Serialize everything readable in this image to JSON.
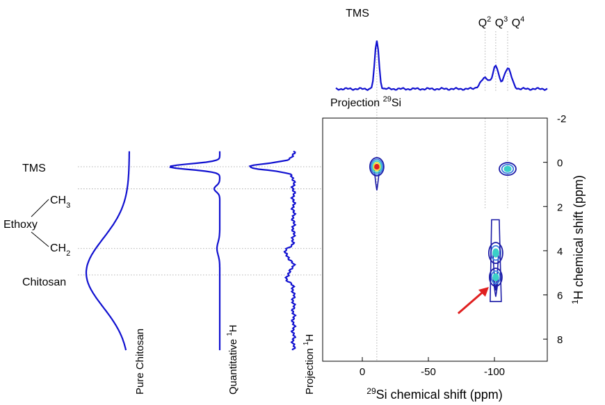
{
  "chart_data": {
    "type": "contour",
    "x_axis": {
      "label": "chemical shift (ppm)",
      "label_nucleus": "29",
      "label_element": "Si",
      "range": [
        30,
        -140
      ],
      "ticks": [
        0,
        -50,
        -100
      ],
      "tick_labels": [
        "0",
        "-50",
        "-100"
      ]
    },
    "y_axis": {
      "label": "H chemical shift (ppm)",
      "label_nucleus": "1",
      "range": [
        -2,
        9
      ],
      "ticks": [
        -2,
        0,
        2,
        4,
        6,
        8
      ],
      "tick_labels": [
        "-2",
        "0",
        "2",
        "4",
        "6",
        "8"
      ]
    },
    "top_projection": {
      "label_text": "Projection ",
      "label_nucleus": "29",
      "label_element": "Si",
      "peaks": [
        {
          "label": "TMS",
          "shift": -11,
          "height": 1.0,
          "width": 2.2
        },
        {
          "label": "Q2",
          "label_base": "Q",
          "label_sup": "2",
          "shift": -93,
          "height": 0.22,
          "width": 5
        },
        {
          "label": "Q3",
          "label_base": "Q",
          "label_sup": "3",
          "shift": -101,
          "height": 0.45,
          "width": 3
        },
        {
          "label": "Q4",
          "label_base": "Q",
          "label_sup": "4",
          "shift": -110,
          "height": 0.42,
          "width": 4
        }
      ]
    },
    "left_panels": [
      {
        "name": "Pure Chitosan",
        "label_text": "Pure Chitosan",
        "label_sup": ""
      },
      {
        "name": "Quantitative 1H",
        "label_text": "Quantitative ",
        "label_sup": "1",
        "label_end": "H"
      },
      {
        "name": "Projection 1H",
        "label_text": "Projection ",
        "label_sup": "1",
        "label_end": "H"
      }
    ],
    "shift_annotations": [
      {
        "label": "TMS",
        "shift": 0.2
      },
      {
        "label": "CH3",
        "label_base": "CH",
        "label_sub": "3",
        "shift": 1.2
      },
      {
        "label": "CH2",
        "label_base": "CH",
        "label_sub": "2",
        "shift": 3.9
      },
      {
        "label": "Chitosan",
        "shift": 5.1
      }
    ],
    "group_label": "Ethoxy",
    "contour_peaks": [
      {
        "name": "TMS",
        "si": -11,
        "h": 0.2,
        "levels": 5,
        "colors": [
          "#1a1aa6",
          "#3a7fe0",
          "#3ad0c8",
          "#e8e030",
          "#e02020"
        ]
      },
      {
        "name": "Q-TMS cross",
        "si": -110,
        "h": 0.3,
        "levels": 3,
        "colors": [
          "#1a1aa6",
          "#3a7fe0",
          "#3ad0c8"
        ]
      },
      {
        "name": "Q-CH2 cross",
        "si": -101,
        "h": 4.1,
        "levels": 3,
        "colors": [
          "#1a1aa6",
          "#3a7fe0",
          "#3ad0c8"
        ]
      },
      {
        "name": "Q-Chitosan cross",
        "si": -101,
        "h": 5.2,
        "levels": 3,
        "colors": [
          "#1a1aa6",
          "#3a7fe0",
          "#3ad0c8"
        ]
      }
    ],
    "arrow_target": {
      "si": -101,
      "h": 5.2
    },
    "q_guides": [
      -93,
      -101,
      -110
    ],
    "grid": false,
    "colors": {
      "trace": "#1010d0",
      "arrow": "#e02020",
      "guide": "#999999"
    }
  }
}
